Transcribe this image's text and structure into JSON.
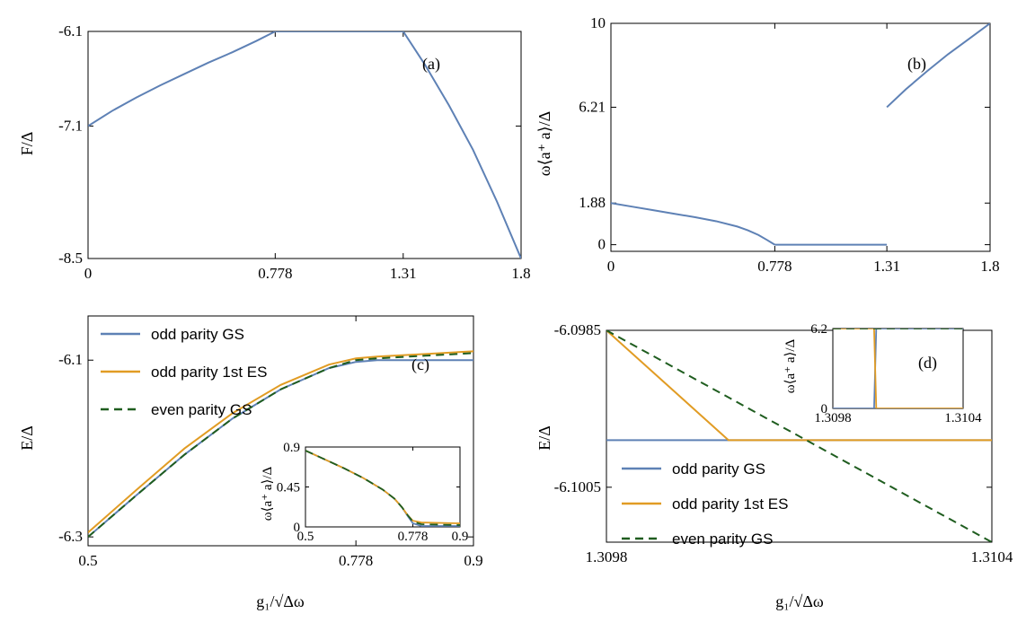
{
  "colors": {
    "odd_gs": "#5e81b5",
    "odd_es": "#e19c24",
    "even_gs": "#1f5d1f"
  },
  "chart_data": [
    {
      "type": "line",
      "panel_label": "(a)",
      "ylabel": "F/Δ",
      "xlabel": "",
      "xlim": [
        0,
        1.8
      ],
      "ylim": [
        -8.5,
        -6.1
      ],
      "xticks": [
        "0",
        "0.778",
        "1.31",
        "1.8"
      ],
      "xtick_values": [
        0,
        0.778,
        1.31,
        1.8
      ],
      "yticks": [
        "-8.5",
        "-7.1",
        "-6.1"
      ],
      "ytick_values": [
        -8.5,
        -7.1,
        -6.1
      ],
      "series": [
        {
          "color_key": "odd_gs",
          "dashed": false,
          "x": [
            0,
            0.1,
            0.2,
            0.3,
            0.4,
            0.5,
            0.6,
            0.7,
            0.778,
            0.9,
            1.0,
            1.1,
            1.2,
            1.31,
            1.4,
            1.5,
            1.6,
            1.7,
            1.8
          ],
          "y": [
            -7.1,
            -6.94,
            -6.8,
            -6.67,
            -6.55,
            -6.43,
            -6.32,
            -6.2,
            -6.1,
            -6.1,
            -6.1,
            -6.1,
            -6.1,
            -6.1,
            -6.45,
            -6.88,
            -7.35,
            -7.9,
            -8.5
          ]
        }
      ]
    },
    {
      "type": "line",
      "panel_label": "(b)",
      "ylabel": "ω⟨a⁺ a⟩/Δ",
      "xlabel": "",
      "xlim": [
        0,
        1.8
      ],
      "ylim": [
        -0.3,
        10
      ],
      "xticks": [
        "0",
        "0.778",
        "1.31",
        "1.8"
      ],
      "xtick_values": [
        0,
        0.778,
        1.31,
        1.8
      ],
      "yticks": [
        "0",
        "1.88",
        "6.21",
        "10"
      ],
      "ytick_values": [
        0,
        1.88,
        6.21,
        10
      ],
      "series": [
        {
          "color_key": "odd_gs",
          "dashed": false,
          "x": [
            0,
            0.1,
            0.2,
            0.3,
            0.4,
            0.5,
            0.6,
            0.65,
            0.7,
            0.74,
            0.778
          ],
          "y": [
            1.88,
            1.72,
            1.56,
            1.4,
            1.24,
            1.06,
            0.82,
            0.65,
            0.44,
            0.22,
            0
          ]
        },
        {
          "color_key": "odd_gs",
          "dashed": false,
          "x": [
            0.778,
            1.31
          ],
          "y": [
            0,
            0
          ]
        },
        {
          "color_key": "odd_gs",
          "dashed": false,
          "x": [
            1.31,
            1.4,
            1.5,
            1.6,
            1.7,
            1.8
          ],
          "y": [
            6.21,
            7.02,
            7.83,
            8.6,
            9.3,
            10
          ]
        }
      ]
    },
    {
      "type": "line",
      "panel_label": "(c)",
      "ylabel": "E/Δ",
      "xlabel": "g₁/√Δω",
      "xlim": [
        0.5,
        0.9
      ],
      "ylim": [
        -6.31,
        -6.05
      ],
      "xticks": [
        "0.5",
        "0.778",
        "0.9"
      ],
      "xtick_values": [
        0.5,
        0.778,
        0.9
      ],
      "yticks": [
        "-6.3",
        "-6.1"
      ],
      "ytick_values": [
        -6.3,
        -6.1
      ],
      "legend": [
        "odd parity GS",
        "odd parity 1st ES",
        "even parity GS"
      ],
      "series": [
        {
          "name": "odd parity GS",
          "color_key": "odd_gs",
          "dashed": false,
          "x": [
            0.5,
            0.55,
            0.6,
            0.65,
            0.7,
            0.75,
            0.778,
            0.8,
            0.85,
            0.9
          ],
          "y": [
            -6.3,
            -6.253,
            -6.207,
            -6.166,
            -6.133,
            -6.109,
            -6.102,
            -6.1,
            -6.1,
            -6.1
          ]
        },
        {
          "name": "odd parity 1st ES",
          "color_key": "odd_es",
          "dashed": false,
          "x": [
            0.5,
            0.55,
            0.6,
            0.65,
            0.7,
            0.75,
            0.778,
            0.8,
            0.85,
            0.9
          ],
          "y": [
            -6.295,
            -6.247,
            -6.2,
            -6.16,
            -6.128,
            -6.105,
            -6.098,
            -6.096,
            -6.093,
            -6.09
          ]
        },
        {
          "name": "even parity GS",
          "color_key": "even_gs",
          "dashed": true,
          "x": [
            0.5,
            0.55,
            0.6,
            0.65,
            0.7,
            0.75,
            0.778,
            0.8,
            0.85,
            0.9
          ],
          "y": [
            -6.3,
            -6.253,
            -6.207,
            -6.166,
            -6.133,
            -6.109,
            -6.1,
            -6.098,
            -6.095,
            -6.092
          ]
        }
      ],
      "inset": {
        "ylabel": "ω⟨a⁺ a⟩/Δ",
        "xlim": [
          0.5,
          0.9
        ],
        "ylim": [
          0,
          0.9
        ],
        "xticks": [
          "0.5",
          "0.778",
          "0.9"
        ],
        "xtick_values": [
          0.5,
          0.778,
          0.9
        ],
        "yticks": [
          "0",
          "0.45",
          "0.9"
        ],
        "ytick_values": [
          0,
          0.45,
          0.9
        ],
        "series": [
          {
            "color_key": "odd_gs",
            "dashed": false,
            "x": [
              0.5,
              0.55,
              0.6,
              0.65,
              0.7,
              0.73,
              0.75,
              0.765,
              0.778,
              0.8,
              0.9
            ],
            "y": [
              0.86,
              0.76,
              0.66,
              0.55,
              0.42,
              0.32,
              0.22,
              0.12,
              0.04,
              0.01,
              0.01
            ]
          },
          {
            "color_key": "odd_es",
            "dashed": false,
            "x": [
              0.5,
              0.55,
              0.6,
              0.65,
              0.7,
              0.73,
              0.75,
              0.765,
              0.778,
              0.8,
              0.9
            ],
            "y": [
              0.86,
              0.76,
              0.66,
              0.55,
              0.42,
              0.32,
              0.22,
              0.13,
              0.07,
              0.05,
              0.04
            ]
          },
          {
            "color_key": "even_gs",
            "dashed": true,
            "x": [
              0.5,
              0.55,
              0.6,
              0.65,
              0.7,
              0.73,
              0.75,
              0.765,
              0.778,
              0.8,
              0.9
            ],
            "y": [
              0.86,
              0.76,
              0.66,
              0.55,
              0.42,
              0.32,
              0.22,
              0.13,
              0.06,
              0.03,
              0.02
            ]
          }
        ]
      }
    },
    {
      "type": "line",
      "panel_label": "(d)",
      "ylabel": "E/Δ",
      "xlabel": "g₁/√Δω",
      "xlim": [
        1.3098,
        1.3104
      ],
      "ylim": [
        -6.1012,
        -6.0985
      ],
      "xticks": [
        "1.3098",
        "1.3104"
      ],
      "xtick_values": [
        1.3098,
        1.3104
      ],
      "yticks": [
        "-6.1005",
        "-6.0985"
      ],
      "ytick_values": [
        -6.1005,
        -6.0985
      ],
      "legend": [
        "odd parity GS",
        "odd parity 1st ES",
        "even parity GS"
      ],
      "series": [
        {
          "name": "odd parity GS",
          "color_key": "odd_gs",
          "dashed": false,
          "x": [
            1.3098,
            1.3104
          ],
          "y": [
            -6.0999,
            -6.0999
          ]
        },
        {
          "name": "odd parity 1st ES",
          "color_key": "odd_es",
          "dashed": false,
          "x": [
            1.3098,
            1.30999,
            1.3104
          ],
          "y": [
            -6.0985,
            -6.0999,
            -6.0999
          ]
        },
        {
          "name": "even parity GS",
          "color_key": "even_gs",
          "dashed": true,
          "x": [
            1.3098,
            1.3104
          ],
          "y": [
            -6.0985,
            -6.1012
          ]
        }
      ],
      "inset": {
        "ylabel": "ω⟨a⁺ a⟩/Δ",
        "xlim": [
          1.3098,
          1.3104
        ],
        "ylim": [
          0,
          6.2
        ],
        "xticks": [
          "1.3098",
          "1.3104"
        ],
        "xtick_values": [
          1.3098,
          1.3104
        ],
        "yticks": [
          "0",
          "6.2"
        ],
        "ytick_values": [
          0,
          6.2
        ],
        "series": [
          {
            "color_key": "odd_gs",
            "dashed": false,
            "x": [
              1.3098,
              1.30999,
              1.31,
              1.3104
            ],
            "y": [
              0,
              0,
              6.2,
              6.2
            ]
          },
          {
            "color_key": "odd_es",
            "dashed": false,
            "x": [
              1.3098,
              1.30999,
              1.31,
              1.3104
            ],
            "y": [
              6.2,
              6.2,
              0,
              0
            ]
          },
          {
            "color_key": "even_gs",
            "dashed": true,
            "x": [
              1.3098,
              1.3104
            ],
            "y": [
              6.2,
              6.2
            ]
          }
        ]
      }
    }
  ]
}
